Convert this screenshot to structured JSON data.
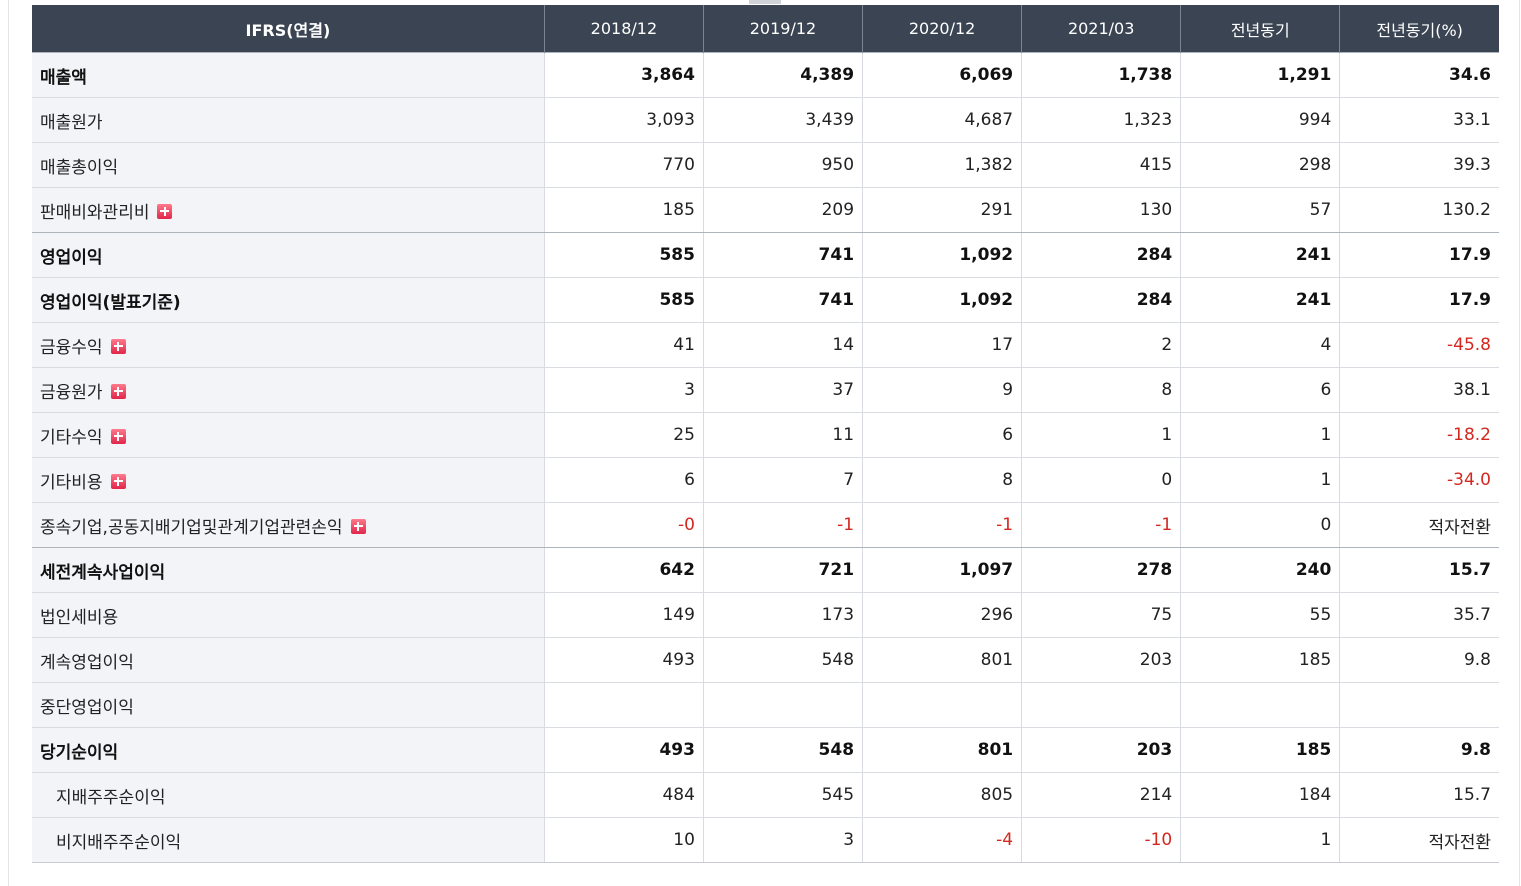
{
  "table": {
    "headers": [
      "IFRS(연결)",
      "2018/12",
      "2019/12",
      "2020/12",
      "2021/03",
      "전년동기",
      "전년동기(%)"
    ],
    "rows": [
      {
        "label": "매출액",
        "bold": true,
        "expand": false,
        "values": [
          "3,864",
          "4,389",
          "6,069",
          "1,738",
          "1,291",
          "34.6"
        ]
      },
      {
        "label": "매출원가",
        "bold": false,
        "expand": false,
        "values": [
          "3,093",
          "3,439",
          "4,687",
          "1,323",
          "994",
          "33.1"
        ]
      },
      {
        "label": "매출총이익",
        "bold": false,
        "expand": false,
        "values": [
          "770",
          "950",
          "1,382",
          "415",
          "298",
          "39.3"
        ]
      },
      {
        "label": "판매비와관리비",
        "bold": false,
        "expand": true,
        "values": [
          "185",
          "209",
          "291",
          "130",
          "57",
          "130.2"
        ]
      },
      {
        "label": "영업이익",
        "bold": true,
        "expand": false,
        "values": [
          "585",
          "741",
          "1,092",
          "284",
          "241",
          "17.9"
        ]
      },
      {
        "label": "영업이익(발표기준)",
        "bold": true,
        "expand": false,
        "values": [
          "585",
          "741",
          "1,092",
          "284",
          "241",
          "17.9"
        ]
      },
      {
        "label": "금융수익",
        "bold": false,
        "expand": true,
        "values": [
          "41",
          "14",
          "17",
          "2",
          "4",
          "-45.8"
        ]
      },
      {
        "label": "금융원가",
        "bold": false,
        "expand": true,
        "values": [
          "3",
          "37",
          "9",
          "8",
          "6",
          "38.1"
        ]
      },
      {
        "label": "기타수익",
        "bold": false,
        "expand": true,
        "values": [
          "25",
          "11",
          "6",
          "1",
          "1",
          "-18.2"
        ]
      },
      {
        "label": "기타비용",
        "bold": false,
        "expand": true,
        "values": [
          "6",
          "7",
          "8",
          "0",
          "1",
          "-34.0"
        ]
      },
      {
        "label": "종속기업,공동지배기업및관계기업관련손익",
        "bold": false,
        "expand": true,
        "values": [
          "-0",
          "-1",
          "-1",
          "-1",
          "0",
          "적자전환"
        ]
      },
      {
        "label": "세전계속사업이익",
        "bold": true,
        "expand": false,
        "values": [
          "642",
          "721",
          "1,097",
          "278",
          "240",
          "15.7"
        ]
      },
      {
        "label": "법인세비용",
        "bold": false,
        "expand": false,
        "values": [
          "149",
          "173",
          "296",
          "75",
          "55",
          "35.7"
        ]
      },
      {
        "label": "계속영업이익",
        "bold": false,
        "expand": false,
        "values": [
          "493",
          "548",
          "801",
          "203",
          "185",
          "9.8"
        ]
      },
      {
        "label": "중단영업이익",
        "bold": false,
        "expand": false,
        "values": [
          "",
          "",
          "",
          "",
          "",
          ""
        ]
      },
      {
        "label": "당기순이익",
        "bold": true,
        "expand": false,
        "values": [
          "493",
          "548",
          "801",
          "203",
          "185",
          "9.8"
        ]
      },
      {
        "label": "지배주주순이익",
        "bold": false,
        "expand": false,
        "sub": true,
        "values": [
          "484",
          "545",
          "805",
          "214",
          "184",
          "15.7"
        ]
      },
      {
        "label": "비지배주주순이익",
        "bold": false,
        "expand": false,
        "sub": true,
        "values": [
          "10",
          "3",
          "-4",
          "-10",
          "1",
          "적자전환"
        ]
      }
    ]
  },
  "colors": {
    "header_bg": "#3a4452",
    "label_bg": "#f2f4f8",
    "negative": "#d3281f",
    "expand_icon": "#e0264a"
  }
}
